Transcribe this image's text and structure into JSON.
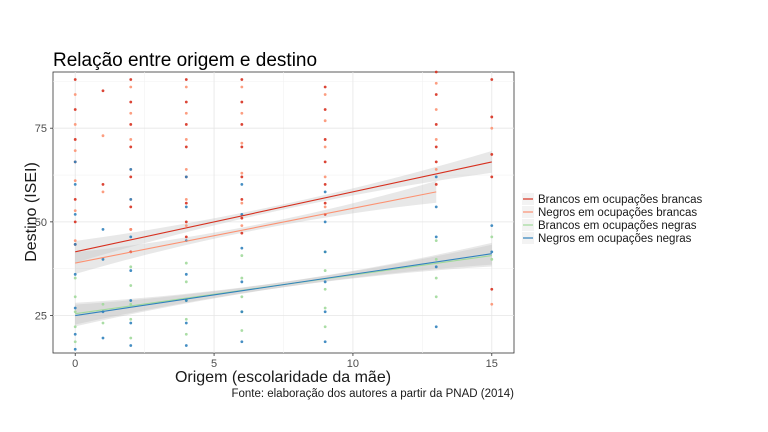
{
  "chart_data": {
    "type": "scatter",
    "title": "Relação entre origem e destino",
    "xlabel": "Origem (escolaridade da mãe)",
    "ylabel": "Destino (ISEI)",
    "caption": "Fonte: elaboração dos autores a partir da PNAD (2014)",
    "xlim": [
      -0.8,
      15.8
    ],
    "ylim": [
      15,
      90
    ],
    "xticks": [
      0,
      5,
      10,
      15
    ],
    "yticks": [
      25,
      50,
      75
    ],
    "grid": true,
    "legend_position": "right",
    "series": [
      {
        "name": "Brancos em ocupações brancas",
        "color": "#d7301f",
        "fit": {
          "x": [
            0,
            15
          ],
          "y": [
            42,
            66
          ]
        },
        "x": [
          0,
          0,
          0,
          0,
          0,
          0,
          0,
          1,
          1,
          2,
          2,
          2,
          2,
          2,
          2,
          2,
          2,
          4,
          4,
          4,
          4,
          4,
          4,
          4,
          4,
          6,
          6,
          6,
          6,
          6,
          6,
          6,
          6,
          9,
          9,
          9,
          9,
          9,
          9,
          9,
          13,
          13,
          13,
          13,
          13,
          13,
          15,
          15,
          15,
          15,
          15
        ],
        "y": [
          88,
          80,
          72,
          66,
          56,
          50,
          44,
          85,
          60,
          88,
          82,
          76,
          70,
          62,
          54,
          48,
          42,
          88,
          82,
          76,
          70,
          62,
          55,
          50,
          46,
          88,
          82,
          76,
          70,
          62,
          56,
          51,
          47,
          86,
          80,
          72,
          66,
          60,
          55,
          52,
          90,
          84,
          76,
          70,
          66,
          60,
          88,
          78,
          68,
          62,
          32
        ]
      },
      {
        "name": "Negros em ocupações brancas",
        "color": "#fc9272",
        "fit": {
          "x": [
            0,
            13
          ],
          "y": [
            39,
            58
          ]
        },
        "x": [
          0,
          0,
          0,
          0,
          0,
          0,
          1,
          1,
          2,
          2,
          2,
          2,
          2,
          2,
          4,
          4,
          4,
          4,
          4,
          4,
          6,
          6,
          6,
          6,
          6,
          6,
          9,
          9,
          9,
          9,
          9,
          13,
          13,
          13,
          13,
          15,
          15
        ],
        "y": [
          84,
          76,
          69,
          61,
          53,
          45,
          73,
          58,
          86,
          79,
          72,
          64,
          56,
          48,
          86,
          79,
          72,
          64,
          56,
          49,
          86,
          79,
          71,
          63,
          55,
          49,
          84,
          77,
          70,
          62,
          54,
          87,
          80,
          72,
          64,
          75,
          28
        ]
      },
      {
        "name": "Brancos em ocupações negras",
        "color": "#a1d99b",
        "fit": {
          "x": [
            0,
            15
          ],
          "y": [
            25.5,
            41
          ]
        },
        "x": [
          0,
          0,
          0,
          0,
          0,
          1,
          1,
          2,
          2,
          2,
          2,
          2,
          4,
          4,
          4,
          4,
          4,
          6,
          6,
          6,
          6,
          6,
          9,
          9,
          9,
          9,
          9,
          13,
          13,
          13,
          13,
          15,
          15
        ],
        "y": [
          35,
          30,
          26,
          22,
          18,
          28,
          23,
          38,
          33,
          28,
          24,
          19,
          39,
          34,
          29,
          24,
          20,
          41,
          35,
          30,
          26,
          21,
          42,
          37,
          32,
          27,
          22,
          45,
          40,
          35,
          30,
          46,
          40
        ]
      },
      {
        "name": "Negros em ocupações negras",
        "color": "#3182bd",
        "fit": {
          "x": [
            0,
            15
          ],
          "y": [
            25,
            41.5
          ]
        },
        "x": [
          0,
          0,
          0,
          0,
          0,
          0,
          0,
          0,
          1,
          1,
          1,
          1,
          2,
          2,
          2,
          2,
          2,
          2,
          2,
          4,
          4,
          4,
          4,
          4,
          4,
          4,
          6,
          6,
          6,
          6,
          6,
          6,
          9,
          9,
          9,
          9,
          9,
          9,
          13,
          13,
          13,
          13,
          13,
          15,
          15
        ],
        "y": [
          66,
          60,
          52,
          44,
          36,
          27,
          20,
          16,
          48,
          40,
          26,
          19,
          64,
          56,
          46,
          37,
          29,
          23,
          17,
          62,
          54,
          45,
          36,
          29,
          23,
          17,
          60,
          52,
          43,
          34,
          26,
          18,
          58,
          50,
          42,
          34,
          26,
          18,
          62,
          54,
          46,
          38,
          22,
          49,
          42
        ]
      }
    ]
  }
}
